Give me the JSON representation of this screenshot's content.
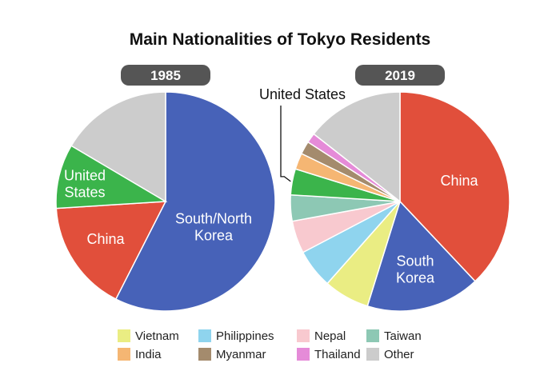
{
  "chart_data": {
    "type": "pie",
    "title": "Main Nationalities of Tokyo Residents",
    "unit": "share (%)",
    "legend_position": "bottom",
    "colors": {
      "South/North Korea": "#4762b8",
      "South Korea": "#4762b8",
      "China": "#e14f3b",
      "United States": "#3bb44b",
      "Vietnam": "#eaed83",
      "Philippines": "#8fd4ee",
      "Nepal": "#f8c9cf",
      "Taiwan": "#8dc8b4",
      "India": "#f5b673",
      "Myanmar": "#a48b6d",
      "Thailand": "#e58bd8",
      "Other": "#cccccc"
    },
    "pies": [
      {
        "year": "1985",
        "slices": [
          {
            "name": "South/North Korea",
            "label": "South/North Korea",
            "value": 57.5
          },
          {
            "name": "China",
            "label": "China",
            "value": 16.5
          },
          {
            "name": "United States",
            "label": "United States",
            "value": 9.5
          },
          {
            "name": "Other",
            "label": "",
            "value": 16.5
          }
        ]
      },
      {
        "year": "2019",
        "slices": [
          {
            "name": "China",
            "label": "China",
            "value": 39.5
          },
          {
            "name": "South Korea",
            "label": "South Korea",
            "value": 17.5
          },
          {
            "name": "Vietnam",
            "label": "",
            "value": 7
          },
          {
            "name": "Philippines",
            "label": "",
            "value": 6
          },
          {
            "name": "Nepal",
            "label": "",
            "value": 5
          },
          {
            "name": "Taiwan",
            "label": "",
            "value": 4
          },
          {
            "name": "United States",
            "label": "United States",
            "value": 4
          },
          {
            "name": "India",
            "label": "",
            "value": 2.5
          },
          {
            "name": "Myanmar",
            "label": "",
            "value": 2
          },
          {
            "name": "Thailand",
            "label": "",
            "value": 1.5
          },
          {
            "name": "Other",
            "label": "",
            "value": 15
          }
        ]
      }
    ],
    "legend": [
      "Vietnam",
      "Philippines",
      "Nepal",
      "Taiwan",
      "India",
      "Myanmar",
      "Thailand",
      "Other"
    ]
  }
}
